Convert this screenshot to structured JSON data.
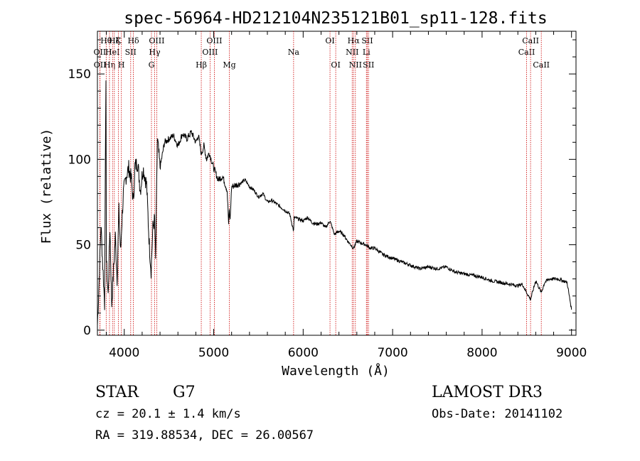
{
  "chart_data": {
    "type": "line",
    "title": "spec-56964-HD212104N235121B01_sp11-128.fits",
    "xlabel": "Wavelength (Å)",
    "ylabel": "Flux (relative)",
    "xlim": [
      3700,
      9050
    ],
    "ylim": [
      -3,
      175
    ],
    "x_ticks": [
      4000,
      5000,
      6000,
      7000,
      8000,
      9000
    ],
    "x_tick_labels": [
      "4000",
      "5000",
      "6000",
      "7000",
      "8000",
      "9000"
    ],
    "y_ticks": [
      0,
      50,
      100,
      150
    ],
    "y_tick_labels": [
      "0",
      "50",
      "100",
      "150"
    ],
    "grid": false,
    "line_color": "#000000",
    "marker_color": "#cc0000",
    "series": [
      {
        "x": [
          3700,
          3720,
          3740,
          3760,
          3780,
          3795,
          3800,
          3820,
          3840,
          3860,
          3880,
          3900,
          3920,
          3940,
          3960,
          3970,
          3990,
          4020,
          4050,
          4080,
          4101,
          4120,
          4150,
          4180,
          4210,
          4250,
          4280,
          4300,
          4320,
          4340,
          4350,
          4370,
          4400,
          4450,
          4500,
          4550,
          4600,
          4650,
          4700,
          4750,
          4800,
          4830,
          4861,
          4890,
          4920,
          4950,
          5000,
          5050,
          5100,
          5150,
          5167,
          5175,
          5183,
          5200,
          5250,
          5300,
          5350,
          5400,
          5450,
          5500,
          5550,
          5600,
          5650,
          5700,
          5750,
          5800,
          5850,
          5893,
          5900,
          5950,
          6000,
          6050,
          6100,
          6150,
          6200,
          6250,
          6300,
          6350,
          6400,
          6450,
          6500,
          6563,
          6600,
          6650,
          6700,
          6750,
          6800,
          6900,
          7000,
          7100,
          7200,
          7300,
          7400,
          7500,
          7600,
          7700,
          7800,
          7900,
          8000,
          8100,
          8200,
          8300,
          8400,
          8450,
          8498,
          8542,
          8600,
          8662,
          8700,
          8750,
          8800,
          8850,
          8900,
          8950,
          9000
        ],
        "y": [
          3,
          30,
          62,
          38,
          15,
          150,
          40,
          20,
          60,
          15,
          35,
          55,
          30,
          70,
          45,
          60,
          80,
          90,
          95,
          88,
          75,
          96,
          98,
          82,
          95,
          85,
          50,
          35,
          60,
          65,
          40,
          112,
          95,
          110,
          112,
          114,
          108,
          115,
          112,
          116,
          110,
          114,
          103,
          108,
          100,
          104,
          95,
          88,
          90,
          82,
          62,
          70,
          64,
          84,
          85,
          86,
          88,
          84,
          82,
          78,
          80,
          75,
          76,
          74,
          72,
          70,
          68,
          58,
          66,
          65,
          64,
          66,
          63,
          62,
          63,
          60,
          64,
          56,
          58,
          56,
          52,
          48,
          52,
          51,
          50,
          48,
          48,
          44,
          42,
          40,
          38,
          36,
          37,
          36,
          37,
          34,
          33,
          32,
          31,
          29,
          28,
          27,
          26,
          27,
          22,
          18,
          29,
          22,
          28,
          30,
          30,
          30,
          29,
          28,
          12
        ]
      }
    ],
    "line_markers": [
      {
        "wavelength": 3727,
        "label": "OII",
        "row": 2
      },
      {
        "wavelength": 3729,
        "label": "OII",
        "row": 3
      },
      {
        "wavelength": 3798,
        "label": "Hθ",
        "row": 1
      },
      {
        "wavelength": 3835,
        "label": "Hη",
        "row": 3
      },
      {
        "wavelength": 3869,
        "label": "HeI",
        "row": 2
      },
      {
        "wavelength": 3889,
        "label": "Hζ",
        "row": 1
      },
      {
        "wavelength": 3934,
        "label": "K",
        "row": 1
      },
      {
        "wavelength": 3968,
        "label": "H",
        "row": 3
      },
      {
        "wavelength": 4072,
        "label": "SII",
        "row": 2
      },
      {
        "wavelength": 4102,
        "label": "Hδ",
        "row": 1
      },
      {
        "wavelength": 4304,
        "label": "G",
        "row": 3
      },
      {
        "wavelength": 4340,
        "label": "Hγ",
        "row": 2
      },
      {
        "wavelength": 4363,
        "label": "OIII",
        "row": 1
      },
      {
        "wavelength": 4861,
        "label": "Hβ",
        "row": 3
      },
      {
        "wavelength": 4959,
        "label": "OIII",
        "row": 2
      },
      {
        "wavelength": 5007,
        "label": "OIII",
        "row": 1
      },
      {
        "wavelength": 5175,
        "label": "Mg",
        "row": 3
      },
      {
        "wavelength": 5893,
        "label": "Na",
        "row": 2
      },
      {
        "wavelength": 6300,
        "label": "OI",
        "row": 1
      },
      {
        "wavelength": 6364,
        "label": "OI",
        "row": 3
      },
      {
        "wavelength": 6548,
        "label": "NII",
        "row": 2
      },
      {
        "wavelength": 6563,
        "label": "Hα",
        "row": 1
      },
      {
        "wavelength": 6584,
        "label": "NII",
        "row": 3
      },
      {
        "wavelength": 6707,
        "label": "Li",
        "row": 2
      },
      {
        "wavelength": 6717,
        "label": "SII",
        "row": 1
      },
      {
        "wavelength": 6731,
        "label": "SII",
        "row": 3
      },
      {
        "wavelength": 8498,
        "label": "CaII",
        "row": 2
      },
      {
        "wavelength": 8542,
        "label": "CaII",
        "row": 1
      },
      {
        "wavelength": 8662,
        "label": "CaII",
        "row": 3
      }
    ]
  },
  "info": {
    "object_type": "STAR",
    "subclass": "G7",
    "cz": "cz = 20.1 ± 1.4 km/s",
    "coords": "RA = 319.88534, DEC =  26.00567",
    "survey": "LAMOST DR3",
    "obs_date": "Obs-Date: 20141102"
  }
}
